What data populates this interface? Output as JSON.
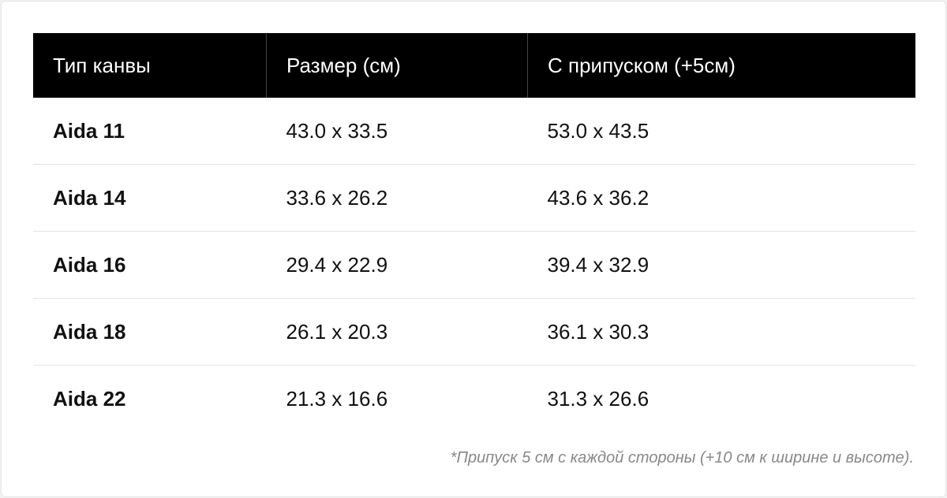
{
  "table": {
    "header": [
      "Тип канвы",
      "Размер (см)",
      "С припуском (+5см)"
    ],
    "rows": [
      [
        "Aida 11",
        "43.0 x 33.5",
        "53.0 x 43.5"
      ],
      [
        "Aida 14",
        "33.6 x 26.2",
        "43.6 x 36.2"
      ],
      [
        "Aida 16",
        "29.4 x 22.9",
        "39.4 x 32.9"
      ],
      [
        "Aida 18",
        "26.1 x 20.3",
        "36.1 x 30.3"
      ],
      [
        "Aida 22",
        "21.3 x 16.6",
        "31.3 x 26.6"
      ]
    ]
  },
  "footnote": "*Припуск 5 см с каждой стороны (+10 см к ширине и высоте)."
}
